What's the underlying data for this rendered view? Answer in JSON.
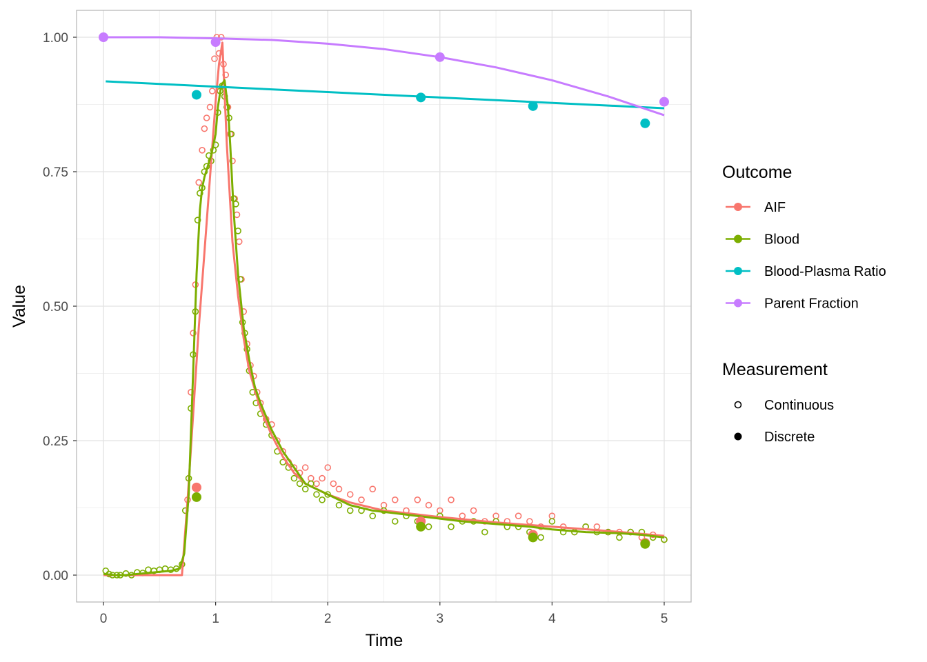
{
  "chart_data": {
    "type": "scatter",
    "title": "",
    "xlabel": "Time",
    "ylabel": "Value",
    "xlim": [
      -0.24,
      5.24
    ],
    "ylim": [
      -0.05,
      1.05
    ],
    "x_ticks": [
      0,
      1,
      2,
      3,
      4,
      5
    ],
    "x_tick_labels": [
      "0",
      "1",
      "2",
      "3",
      "4",
      "5"
    ],
    "y_ticks": [
      0,
      0.25,
      0.5,
      0.75,
      1.0
    ],
    "y_tick_labels": [
      "0.00",
      "0.25",
      "0.50",
      "0.75",
      "1.00"
    ],
    "grid": true,
    "legend_position": "right",
    "legend": {
      "outcome_title": "Outcome",
      "outcome_entries": [
        {
          "name": "AIF",
          "color": "#F8766D"
        },
        {
          "name": "Blood",
          "color": "#7CAE00"
        },
        {
          "name": "Blood-Plasma Ratio",
          "color": "#00BFC4"
        },
        {
          "name": "Parent Fraction",
          "color": "#C77CFF"
        }
      ],
      "measurement_title": "Measurement",
      "measurement_entries": [
        {
          "name": "Continuous",
          "shape": "open-circle"
        },
        {
          "name": "Discrete",
          "shape": "filled-circle"
        }
      ]
    },
    "series": [
      {
        "name": "AIF",
        "color": "#F8766D",
        "fitted_line": {
          "x": [
            0,
            0.7,
            0.75,
            0.8,
            0.85,
            0.9,
            0.95,
            1.0,
            1.03,
            1.06,
            1.1,
            1.15,
            1.2,
            1.25,
            1.3,
            1.4,
            1.5,
            1.6,
            1.7,
            1.8,
            2.0,
            2.2,
            2.5,
            3.0,
            3.5,
            4.0,
            4.5,
            5.0
          ],
          "y": [
            0,
            0,
            0.14,
            0.3,
            0.46,
            0.6,
            0.74,
            0.88,
            0.95,
            0.99,
            0.8,
            0.62,
            0.52,
            0.44,
            0.38,
            0.31,
            0.26,
            0.22,
            0.19,
            0.17,
            0.15,
            0.135,
            0.12,
            0.108,
            0.098,
            0.09,
            0.082,
            0.073
          ]
        },
        "continuous_points": {
          "x": [
            0.75,
            0.78,
            0.8,
            0.82,
            0.85,
            0.88,
            0.9,
            0.92,
            0.95,
            0.97,
            0.99,
            1.01,
            1.03,
            1.05,
            1.07,
            1.09,
            1.11,
            1.13,
            1.15,
            1.17,
            1.19,
            1.21,
            1.23,
            1.25,
            1.28,
            1.31,
            1.34,
            1.37,
            1.4,
            1.45,
            1.5,
            1.55,
            1.6,
            1.65,
            1.7,
            1.75,
            1.8,
            1.85,
            1.9,
            1.95,
            2.0,
            2.05,
            2.1,
            2.2,
            2.3,
            2.4,
            2.5,
            2.6,
            2.7,
            2.8,
            2.9,
            3.0,
            3.1,
            3.2,
            3.3,
            3.4,
            3.5,
            3.6,
            3.7,
            3.8,
            3.9,
            4.0,
            4.1,
            4.2,
            4.3,
            4.4,
            4.5,
            4.6,
            4.7,
            4.8,
            4.9,
            5.0
          ],
          "y": [
            0.14,
            0.34,
            0.45,
            0.54,
            0.73,
            0.79,
            0.83,
            0.85,
            0.87,
            0.9,
            0.96,
            1.0,
            0.97,
            1.0,
            0.95,
            0.93,
            0.87,
            0.82,
            0.77,
            0.7,
            0.67,
            0.62,
            0.55,
            0.49,
            0.43,
            0.39,
            0.37,
            0.34,
            0.32,
            0.29,
            0.28,
            0.25,
            0.23,
            0.21,
            0.2,
            0.19,
            0.2,
            0.18,
            0.17,
            0.18,
            0.2,
            0.17,
            0.16,
            0.15,
            0.14,
            0.16,
            0.13,
            0.14,
            0.12,
            0.14,
            0.13,
            0.12,
            0.14,
            0.11,
            0.12,
            0.1,
            0.11,
            0.1,
            0.11,
            0.1,
            0.09,
            0.11,
            0.09,
            0.08,
            0.09,
            0.09,
            0.08,
            0.08,
            0.08,
            0.07,
            0.075,
            0.066
          ]
        },
        "discrete_points": {
          "x": [
            0.83,
            2.83,
            3.83,
            4.83
          ],
          "y": [
            0.163,
            0.1,
            0.075,
            0.06
          ]
        }
      },
      {
        "name": "Blood",
        "color": "#7CAE00",
        "fitted_line": {
          "x": [
            0,
            0.1,
            0.2,
            0.3,
            0.4,
            0.5,
            0.6,
            0.68,
            0.72,
            0.76,
            0.8,
            0.83,
            0.86,
            0.88,
            0.9,
            0.93,
            0.96,
            1.0,
            1.02,
            1.05,
            1.08,
            1.11,
            1.13,
            1.16,
            1.2,
            1.25,
            1.3,
            1.35,
            1.4,
            1.5,
            1.6,
            1.7,
            1.8,
            1.9,
            2.0,
            2.2,
            2.4,
            2.6,
            2.8,
            3.0,
            3.2,
            3.5,
            3.8,
            4.0,
            4.3,
            4.6,
            4.8,
            5.0
          ],
          "y": [
            0.002,
            0.0,
            0.0,
            0.002,
            0.004,
            0.006,
            0.008,
            0.012,
            0.04,
            0.15,
            0.38,
            0.56,
            0.68,
            0.72,
            0.74,
            0.76,
            0.78,
            0.82,
            0.87,
            0.91,
            0.92,
            0.87,
            0.8,
            0.68,
            0.56,
            0.46,
            0.4,
            0.35,
            0.32,
            0.27,
            0.23,
            0.2,
            0.17,
            0.16,
            0.15,
            0.13,
            0.12,
            0.115,
            0.11,
            0.105,
            0.1,
            0.095,
            0.09,
            0.085,
            0.08,
            0.078,
            0.075,
            0.07
          ]
        },
        "continuous_points": {
          "x": [
            0.02,
            0.05,
            0.08,
            0.12,
            0.15,
            0.2,
            0.25,
            0.3,
            0.35,
            0.4,
            0.45,
            0.5,
            0.55,
            0.6,
            0.65,
            0.7,
            0.73,
            0.76,
            0.78,
            0.8,
            0.82,
            0.84,
            0.86,
            0.88,
            0.9,
            0.92,
            0.94,
            0.96,
            0.98,
            1.0,
            1.02,
            1.04,
            1.06,
            1.08,
            1.1,
            1.12,
            1.14,
            1.16,
            1.18,
            1.2,
            1.22,
            1.24,
            1.26,
            1.28,
            1.3,
            1.33,
            1.36,
            1.4,
            1.45,
            1.5,
            1.55,
            1.6,
            1.65,
            1.7,
            1.75,
            1.8,
            1.85,
            1.9,
            1.95,
            2.0,
            2.1,
            2.2,
            2.3,
            2.4,
            2.5,
            2.6,
            2.7,
            2.8,
            2.9,
            3.0,
            3.1,
            3.2,
            3.3,
            3.4,
            3.5,
            3.6,
            3.7,
            3.8,
            3.9,
            4.0,
            4.1,
            4.2,
            4.3,
            4.4,
            4.5,
            4.6,
            4.7,
            4.8,
            4.9,
            5.0
          ],
          "y": [
            0.008,
            0.002,
            0.0,
            0.0,
            0.0,
            0.003,
            0.0,
            0.005,
            0.004,
            0.01,
            0.008,
            0.01,
            0.012,
            0.01,
            0.012,
            0.02,
            0.12,
            0.18,
            0.31,
            0.41,
            0.49,
            0.66,
            0.71,
            0.72,
            0.75,
            0.76,
            0.78,
            0.77,
            0.79,
            0.8,
            0.86,
            0.9,
            0.91,
            0.89,
            0.87,
            0.85,
            0.82,
            0.7,
            0.69,
            0.64,
            0.55,
            0.47,
            0.45,
            0.42,
            0.38,
            0.34,
            0.32,
            0.3,
            0.28,
            0.26,
            0.23,
            0.21,
            0.2,
            0.18,
            0.17,
            0.16,
            0.17,
            0.15,
            0.14,
            0.15,
            0.13,
            0.12,
            0.12,
            0.11,
            0.12,
            0.1,
            0.11,
            0.1,
            0.09,
            0.11,
            0.09,
            0.1,
            0.1,
            0.08,
            0.1,
            0.09,
            0.09,
            0.08,
            0.07,
            0.1,
            0.08,
            0.08,
            0.09,
            0.08,
            0.08,
            0.07,
            0.08,
            0.08,
            0.07,
            0.066
          ]
        },
        "discrete_points": {
          "x": [
            0.83,
            2.83,
            3.83,
            4.83
          ],
          "y": [
            0.145,
            0.09,
            0.07,
            0.058
          ]
        }
      },
      {
        "name": "Blood-Plasma Ratio",
        "color": "#00BFC4",
        "fitted_line": {
          "x": [
            0.02,
            5.0
          ],
          "y": [
            0.918,
            0.868
          ]
        },
        "discrete_points": {
          "x": [
            0.83,
            2.83,
            3.83,
            4.83
          ],
          "y": [
            0.893,
            0.888,
            0.872,
            0.84
          ]
        }
      },
      {
        "name": "Parent Fraction",
        "color": "#C77CFF",
        "fitted_line": {
          "x": [
            0,
            0.5,
            1.0,
            1.5,
            2.0,
            2.5,
            3.0,
            3.5,
            4.0,
            4.5,
            5.0
          ],
          "y": [
            1.0,
            1.0,
            0.998,
            0.995,
            0.988,
            0.978,
            0.963,
            0.944,
            0.92,
            0.89,
            0.855
          ]
        },
        "discrete_points": {
          "x": [
            0,
            1,
            3,
            5
          ],
          "y": [
            1.0,
            0.991,
            0.963,
            0.88
          ]
        }
      }
    ]
  }
}
